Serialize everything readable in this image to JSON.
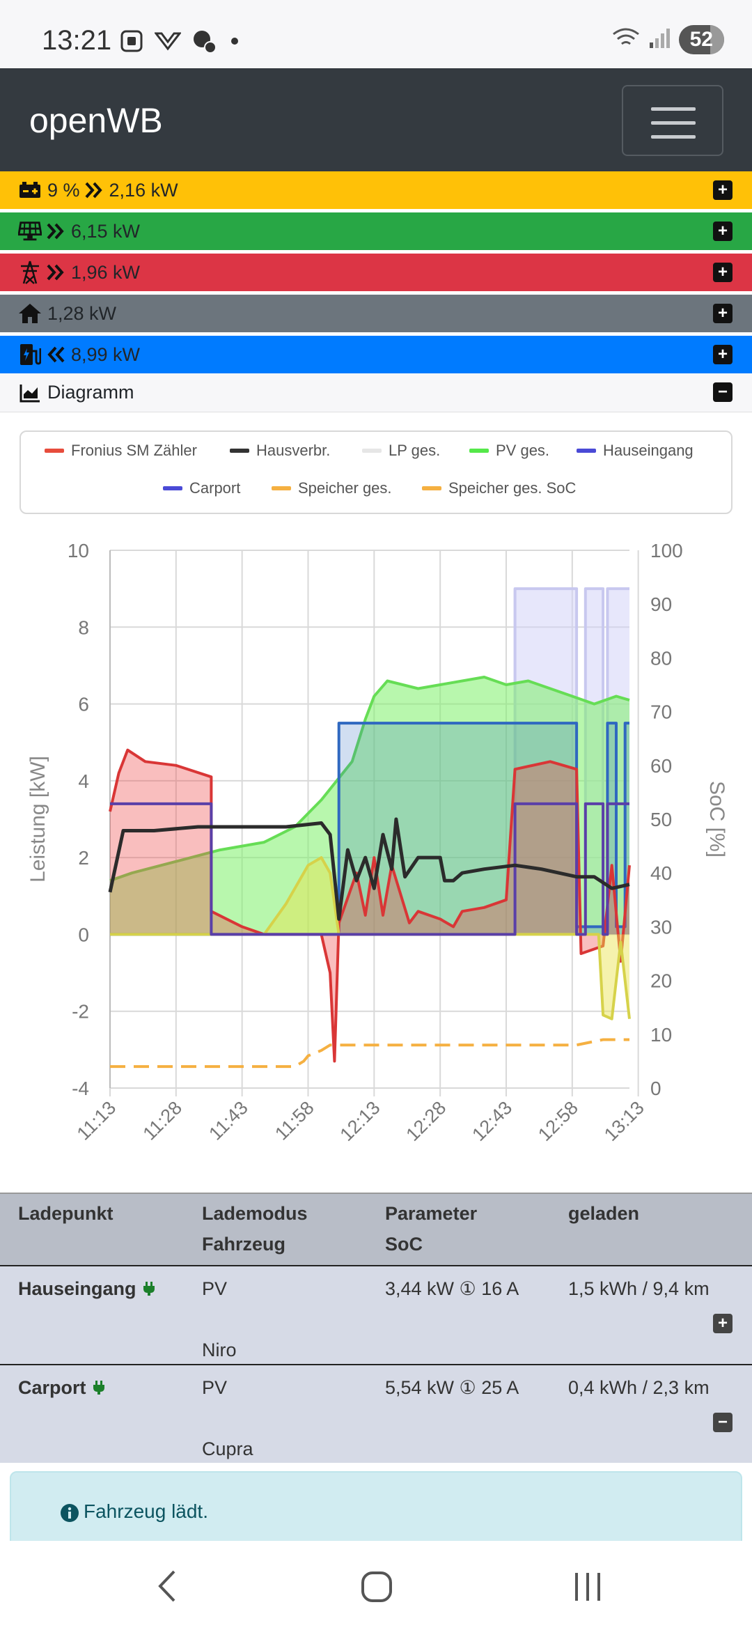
{
  "status_bar": {
    "time": "13:21",
    "battery": "52"
  },
  "app": {
    "title": "openWB"
  },
  "rows": [
    {
      "id": "battery",
      "value": "9 %",
      "power": "2,16 kW",
      "color": "#ffc107",
      "text_color": "#212529",
      "icon": "battery-icon",
      "arrow": "right"
    },
    {
      "id": "pv",
      "value": "",
      "power": "6,15 kW",
      "color": "#28a745",
      "text_color": "#212529",
      "icon": "solar-panel-icon",
      "arrow": "right"
    },
    {
      "id": "grid",
      "value": "",
      "power": "1,96 kW",
      "color": "#dc3545",
      "text_color": "#212529",
      "icon": "power-tower-icon",
      "arrow": "right"
    },
    {
      "id": "house",
      "value": "",
      "power": "1,28 kW",
      "color": "#6c757d",
      "text_color": "#212529",
      "icon": "house-icon",
      "arrow": ""
    },
    {
      "id": "charging",
      "value": "",
      "power": "8,99 kW",
      "color": "#007bff",
      "text_color": "#212529",
      "icon": "charging-station-icon",
      "arrow": "left"
    }
  ],
  "diagram": {
    "label": "Diagramm"
  },
  "chart_data": {
    "type": "area",
    "ylabel": "Leistung [kW]",
    "y2label": "SoC [%]",
    "ylim": [
      -4,
      10
    ],
    "y2lim": [
      0,
      100
    ],
    "yticks": [
      "10",
      "8",
      "6",
      "4",
      "2",
      "0",
      "-2",
      "-4"
    ],
    "y2ticks": [
      "100",
      "90",
      "80",
      "70",
      "60",
      "50",
      "40",
      "30",
      "20",
      "10",
      "0"
    ],
    "xticks": [
      "11:13",
      "11:28",
      "11:43",
      "11:58",
      "12:13",
      "12:28",
      "12:43",
      "12:58",
      "13:13"
    ],
    "grid": true,
    "legend_position": "top",
    "legend": [
      {
        "name": "Fronius SM Zähler",
        "color": "#e74c3c"
      },
      {
        "name": "Hausverbr.",
        "color": "#333333"
      },
      {
        "name": "LP ges.",
        "color": "#e6e6e6"
      },
      {
        "name": "PV ges.",
        "color": "#55e84a"
      },
      {
        "name": "Hauseingang",
        "color": "#4a4ad6"
      },
      {
        "name": "Carport",
        "color": "#4a4ad6"
      },
      {
        "name": "Speicher ges.",
        "color": "#f5b041"
      },
      {
        "name": "Speicher ges. SoC",
        "color": "#f5b041"
      }
    ],
    "series": [
      {
        "name": "PV ges.",
        "color": "#55e84a",
        "points": [
          [
            0,
            1.4
          ],
          [
            5,
            1.6
          ],
          [
            15,
            1.9
          ],
          [
            25,
            2.2
          ],
          [
            35,
            2.4
          ],
          [
            42,
            2.8
          ],
          [
            48,
            3.5
          ],
          [
            55,
            4.5
          ],
          [
            58,
            5.6
          ],
          [
            60,
            6.2
          ],
          [
            63,
            6.6
          ],
          [
            70,
            6.4
          ],
          [
            75,
            6.5
          ],
          [
            85,
            6.7
          ],
          [
            90,
            6.5
          ],
          [
            95,
            6.6
          ],
          [
            100,
            6.4
          ],
          [
            105,
            6.2
          ],
          [
            110,
            6.0
          ],
          [
            115,
            6.2
          ],
          [
            118,
            6.1
          ]
        ]
      },
      {
        "name": "Hauseingang",
        "color": "#4a4ad6",
        "points": [
          [
            0,
            3.4
          ],
          [
            23,
            3.4
          ],
          [
            23,
            0
          ],
          [
            92,
            0
          ],
          [
            92,
            3.4
          ],
          [
            106,
            3.4
          ],
          [
            106,
            0
          ],
          [
            108,
            0
          ],
          [
            108,
            3.4
          ],
          [
            112,
            3.4
          ],
          [
            112,
            0
          ],
          [
            113,
            0
          ],
          [
            113,
            3.4
          ],
          [
            118,
            3.4
          ]
        ]
      },
      {
        "name": "Carport",
        "color": "#3b6bd6",
        "points": [
          [
            0,
            0
          ],
          [
            52,
            0
          ],
          [
            52,
            5.5
          ],
          [
            106,
            5.5
          ],
          [
            106,
            0.2
          ],
          [
            113,
            0.2
          ],
          [
            113,
            5.5
          ],
          [
            115,
            5.5
          ],
          [
            115,
            0.2
          ],
          [
            117,
            0.2
          ],
          [
            117,
            5.5
          ],
          [
            118,
            5.5
          ]
        ]
      },
      {
        "name": "Hausverbr.",
        "color": "#333333",
        "points": [
          [
            0,
            1.1
          ],
          [
            3,
            2.7
          ],
          [
            10,
            2.7
          ],
          [
            20,
            2.8
          ],
          [
            30,
            2.8
          ],
          [
            40,
            2.8
          ],
          [
            48,
            2.9
          ],
          [
            50,
            2.6
          ],
          [
            52,
            0.4
          ],
          [
            54,
            2.2
          ],
          [
            56,
            1.4
          ],
          [
            58,
            2.0
          ],
          [
            60,
            1.2
          ],
          [
            62,
            2.6
          ],
          [
            64,
            1.7
          ],
          [
            65,
            3.0
          ],
          [
            67,
            1.5
          ],
          [
            70,
            2.0
          ],
          [
            75,
            2.0
          ],
          [
            76,
            1.4
          ],
          [
            78,
            1.4
          ],
          [
            80,
            1.6
          ],
          [
            85,
            1.7
          ],
          [
            92,
            1.8
          ],
          [
            98,
            1.7
          ],
          [
            106,
            1.5
          ],
          [
            110,
            1.5
          ],
          [
            114,
            1.2
          ],
          [
            118,
            1.3
          ]
        ]
      },
      {
        "name": "Fronius SM Zähler",
        "color": "#e74c3c",
        "points": [
          [
            0,
            3.2
          ],
          [
            2,
            4.2
          ],
          [
            4,
            4.8
          ],
          [
            8,
            4.5
          ],
          [
            15,
            4.4
          ],
          [
            23,
            4.1
          ],
          [
            23,
            0.6
          ],
          [
            30,
            0.2
          ],
          [
            35,
            0
          ],
          [
            40,
            0
          ],
          [
            48,
            0
          ],
          [
            50,
            -1.0
          ],
          [
            51,
            -3.3
          ],
          [
            52,
            0.3
          ],
          [
            56,
            1.6
          ],
          [
            58,
            0.5
          ],
          [
            60,
            2.0
          ],
          [
            62,
            0.5
          ],
          [
            64,
            1.8
          ],
          [
            68,
            0.3
          ],
          [
            70,
            0.6
          ],
          [
            75,
            0.4
          ],
          [
            78,
            0.2
          ],
          [
            80,
            0.6
          ],
          [
            85,
            0.7
          ],
          [
            90,
            0.9
          ],
          [
            92,
            4.3
          ],
          [
            100,
            4.5
          ],
          [
            106,
            4.3
          ],
          [
            107,
            -0.5
          ],
          [
            112,
            -0.3
          ],
          [
            114,
            1.8
          ],
          [
            116,
            -0.7
          ],
          [
            118,
            1.8
          ]
        ]
      },
      {
        "name": "Speicher ges.",
        "color": "#f5b041",
        "points": [
          [
            0,
            0
          ],
          [
            35,
            0
          ],
          [
            40,
            0.8
          ],
          [
            45,
            1.8
          ],
          [
            48,
            2.0
          ],
          [
            50,
            1.6
          ],
          [
            52,
            0
          ],
          [
            92,
            0
          ],
          [
            106,
            0
          ],
          [
            111,
            0
          ],
          [
            112,
            -2.1
          ],
          [
            114,
            -2.2
          ],
          [
            116,
            -0.2
          ],
          [
            118,
            -2.2
          ]
        ]
      },
      {
        "name": "LP ges.",
        "color": "#e0e0f5",
        "points": [
          [
            0,
            0
          ],
          [
            92,
            0
          ],
          [
            92,
            9.0
          ],
          [
            106,
            9.0
          ],
          [
            106,
            0
          ],
          [
            108,
            0
          ],
          [
            108,
            9.0
          ],
          [
            112,
            9.0
          ],
          [
            112,
            0
          ],
          [
            113,
            0
          ],
          [
            113,
            9.0
          ],
          [
            118,
            9.0
          ]
        ]
      },
      {
        "name": "Speicher ges. SoC",
        "color": "#f5b041",
        "axis": "y2",
        "points": [
          [
            0,
            4
          ],
          [
            42,
            4
          ],
          [
            44,
            5
          ],
          [
            45,
            6
          ],
          [
            48,
            7
          ],
          [
            50,
            8
          ],
          [
            106,
            8
          ],
          [
            112,
            9
          ],
          [
            118,
            9
          ]
        ]
      }
    ]
  },
  "table": {
    "headers": {
      "col1": "Ladepunkt",
      "col2a": "Lademodus",
      "col2b": "Fahrzeug",
      "col3a": "Parameter",
      "col3b": "SoC",
      "col4": "geladen"
    },
    "rows": [
      {
        "name": "Hauseingang",
        "mode": "PV",
        "vehicle": "Niro",
        "param": "3,44 kW ① 16 A",
        "charged": "1,5 kWh / 9,4 km",
        "button": "+"
      },
      {
        "name": "Carport",
        "mode": "PV",
        "vehicle": "Cupra",
        "param": "5,54 kW ① 25 A",
        "charged": "0,4 kWh / 2,3 km",
        "button": "−"
      }
    ]
  },
  "alert": {
    "text": "Fahrzeug lädt."
  }
}
